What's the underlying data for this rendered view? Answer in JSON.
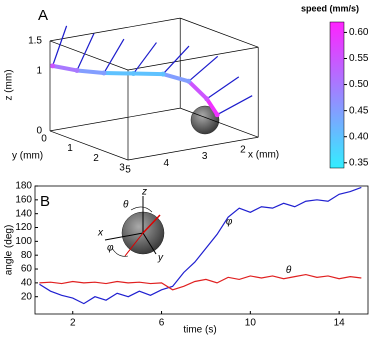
{
  "chart_data": [
    {
      "type": "line3d",
      "title": "A",
      "xlabel": "x (mm)",
      "ylabel": "y (mm)",
      "zlabel": "z (mm)",
      "xlim": [
        1.6,
        5
      ],
      "ylim": [
        0,
        3
      ],
      "zlim": [
        0,
        1.5
      ],
      "xticks": [
        2,
        3,
        4,
        5
      ],
      "yticks": [
        0,
        1,
        2,
        3
      ],
      "zticks": [
        0,
        1,
        1.5
      ],
      "x": [
        5,
        4.5,
        4,
        3.5,
        3,
        2.6,
        2.4,
        2.4
      ],
      "y": [
        0.1,
        0.3,
        0.6,
        1,
        1.4,
        1.8,
        2.2,
        2.6
      ],
      "z": [
        1.1,
        1.0,
        0.95,
        0.95,
        0.95,
        0.85,
        0.6,
        0.4
      ],
      "speed": [
        0.55,
        0.5,
        0.45,
        0.4,
        0.4,
        0.45,
        0.55,
        0.6
      ],
      "colorbar_label": "speed (mm/s)",
      "clim": [
        0.34,
        0.62
      ],
      "colors": [
        "#33eeff",
        "#ff22ff"
      ],
      "cticks": [
        0.35,
        {
          "value": 0.4,
          "label": "0.40"
        },
        0.45,
        {
          "value": 0.5,
          "label": "0.50"
        },
        0.55,
        {
          "value": 0.6,
          "label": "0.60"
        }
      ]
    },
    {
      "type": "line",
      "title": "B",
      "xlabel": "time (s)",
      "ylabel": "angle (deg)",
      "xlim": [
        0.3,
        15.3
      ],
      "ylim": [
        -5,
        180
      ],
      "xticks": [
        2,
        6,
        10,
        14
      ],
      "yticks": [
        20,
        40,
        60,
        80,
        100,
        120,
        140,
        160,
        180
      ],
      "x": [
        0.5,
        1,
        1.5,
        2,
        2.5,
        3,
        3.5,
        4,
        4.5,
        5,
        5.5,
        6,
        6.5,
        7,
        7.5,
        8,
        8.5,
        9,
        9.5,
        10,
        10.5,
        11,
        11.5,
        12,
        12.5,
        13,
        13.5,
        14,
        14.5,
        15
      ],
      "series": [
        {
          "name": "φ",
          "color": "#1f1fd0",
          "values": [
            38,
            28,
            22,
            18,
            10,
            20,
            15,
            25,
            20,
            28,
            22,
            30,
            35,
            55,
            70,
            90,
            110,
            135,
            148,
            142,
            150,
            148,
            155,
            150,
            158,
            160,
            158,
            168,
            172,
            178
          ]
        },
        {
          "name": "θ",
          "color": "#e02020",
          "values": [
            40,
            41,
            39,
            42,
            40,
            41,
            39,
            42,
            40,
            41,
            39,
            40,
            30,
            35,
            42,
            45,
            40,
            48,
            45,
            50,
            47,
            50,
            46,
            49,
            52,
            48,
            50,
            46,
            49,
            47
          ]
        }
      ],
      "annotations": [
        {
          "text": "φ",
          "x": 8.9,
          "y": 128
        },
        {
          "text": "θ",
          "x": 11.6,
          "y": 58
        }
      ],
      "inset_labels": [
        "z",
        "θ",
        "x",
        "φ",
        "y"
      ]
    }
  ]
}
